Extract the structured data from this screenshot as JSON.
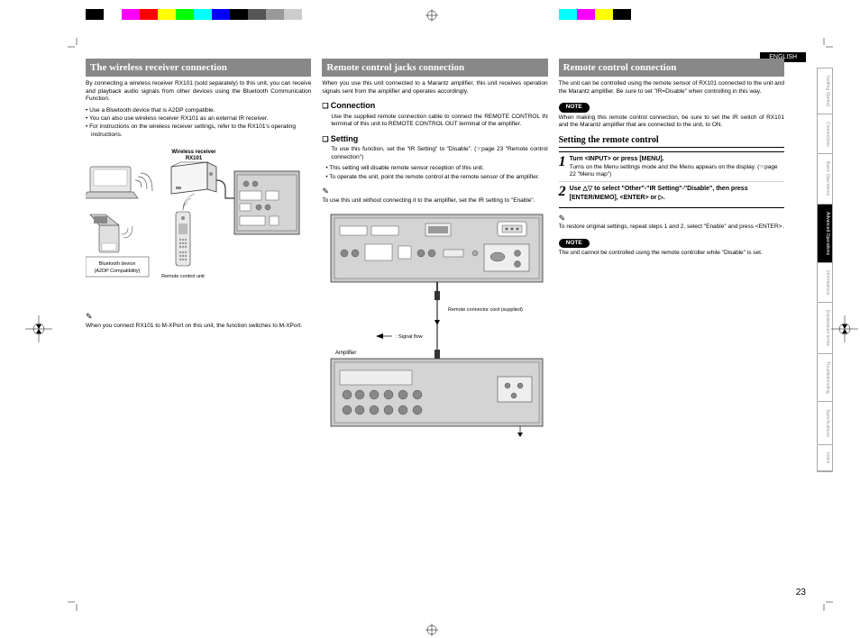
{
  "meta": {
    "page_number": "23",
    "language_tag": "ENGLISH"
  },
  "colorbars": {
    "left": [
      "#000000",
      "#ffffff",
      "#ff00ff",
      "#ff0000",
      "#ffff00",
      "#00ff00",
      "#00ffff",
      "#0000ff",
      "#000000",
      "#555555",
      "#999999",
      "#cccccc"
    ],
    "right": [
      "#00ffff",
      "#ff00ff",
      "#ffff00",
      "#000000"
    ]
  },
  "sidetabs": [
    {
      "label": "Getting Started",
      "active": false
    },
    {
      "label": "Connections",
      "active": false
    },
    {
      "label": "Basic Operations",
      "active": false
    },
    {
      "label": "Advanced Operations",
      "active": true
    },
    {
      "label": "Informations",
      "active": false
    },
    {
      "label": "Explanation terms",
      "active": false
    },
    {
      "label": "Troubleshooting",
      "active": false
    },
    {
      "label": "Specifications",
      "active": false
    },
    {
      "label": "Index",
      "active": false
    }
  ],
  "col1": {
    "title": "The wireless receiver connection",
    "intro": "By connecting a wireless receiver RX101 (sold separately) to this unit, you can receive and playback audio signals from other devices using the Bluetooth Communication Function.",
    "bullets": [
      "• Use a Bluetooth device that is A2DP compatible.",
      "• You can also use wireless receiver RX101 as an external IR receiver.",
      "• For instructions on the wireless receiver settings, refer to the RX101's operating instructions."
    ],
    "diag_title": "Wireless receiver\nRX101",
    "diag_bt": "Bluetooth device\n(A2DP Compatibility)",
    "diag_remote": "Remote control unit",
    "footnote": "When you connect RX101 to M-XPort on this unit, the function switches to M-XPort."
  },
  "col2": {
    "title": "Remote control jacks connection",
    "intro": "When you use this unit connected to a Marantz amplifier, this unit receives operation signals sent from the amplifier and operates accordingly.",
    "connection_hdr": "Connection",
    "connection_body": "Use the supplied remote connection cable to connect the REMOTE CONTROL IN terminal of this unit to REMOTE CONTROL OUT terminal of the amplifier.",
    "setting_hdr": "Setting",
    "setting_body": "To use this function, set the \"IR Setting\" to \"Disable\". (☞page 23 \"Remote control connection\")",
    "setting_bullets": [
      "• This setting will disable remote sensor reception of this unit.",
      "• To operate the unit, point the remote control at the remote sensor of the amplifier."
    ],
    "enable_note": "To use this unit without connecting it to the amplifier, set the IR setting to \"Enable\".",
    "diag_cable": "Remote connector cord (supplied)",
    "diag_signal": ": Signal flow",
    "diag_amp": "Amplifier"
  },
  "col3": {
    "title": "Remote control connection",
    "intro": "The unit can be controlled using the remote sensor of RX101 connected to the unit and the Marantz amplifier. Be sure to set \"IR=Disable\" when controlling in this way.",
    "note1": "When making this remote control connection, be sure to set the IR switch of RX101 and the Marantz amplifier that are connected to the unit, to ON.",
    "setting_hdr": "Setting the remote control",
    "step1_title": "Turn <INPUT> or press [MENU].",
    "step1_body": "Turns on the Menu settings mode and the Menu appears on the display.  (☞page 22 \"Menu map\")",
    "step2_title": "Use △▽ to select \"Other\"-\"IR Setting\"-\"Disable\", then press [ENTER/MEMO], <ENTER> or ▷.",
    "restore": "To restore original settings, repeat steps 1 and 2, select \"Enable\" and press <ENTER>.",
    "note2": "The unit cannot be controlled using the remote controller while \"Disable\" is set."
  }
}
